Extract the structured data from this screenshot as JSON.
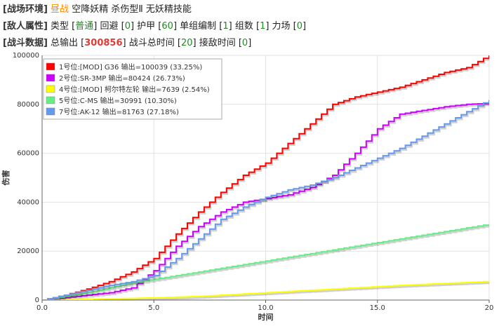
{
  "env": {
    "label": "[战场环境]",
    "time": "昼战",
    "fairy": "空降妖精",
    "type_text": "杀伤型Ⅱ",
    "skill": "无妖精技能"
  },
  "enemy": {
    "label": "[敌人属性]",
    "type_label": "类型 [",
    "type_value": "普通",
    "evasion_label": "] 回避 [",
    "evasion_value": "0",
    "armor_label": "] 护甲 [",
    "armor_value": "60",
    "group_label": "] 单组编制 [",
    "group_value": "1",
    "count_label": "] 组数 [",
    "count_value": "1",
    "force_label": "] 力场 [",
    "force_value": "0",
    "end": "]"
  },
  "battle": {
    "label": "[战斗数据]",
    "total_label": "总输出 [",
    "total_value": "300856",
    "time_label": "] 战斗总时间 [",
    "time_value": "20",
    "contact_label": "] 接敌时间 [",
    "contact_value": "0",
    "end": "]"
  },
  "chart_data": {
    "type": "line",
    "xlabel": "时间",
    "ylabel": "伤害",
    "xlim": [
      0,
      20
    ],
    "ylim": [
      0,
      100000
    ],
    "x_ticks": [
      "0.0",
      "5.0",
      "10.0",
      "15.0",
      "20"
    ],
    "y_ticks": [
      "0",
      "20000",
      "40000",
      "60000",
      "80000",
      "100000"
    ],
    "grid": true,
    "legend_position": "top-left",
    "series": [
      {
        "name": "1号位:[MOD] G36  输出=100039 (33.25%)",
        "color": "#ff0000",
        "x": [
          0,
          1,
          2,
          3,
          4,
          5,
          6,
          7,
          8,
          9,
          10,
          11,
          12,
          13,
          14,
          15,
          16,
          17,
          18,
          19,
          20
        ],
        "y": [
          0,
          2000,
          4500,
          7500,
          11500,
          17000,
          27000,
          36000,
          44000,
          51000,
          56000,
          64000,
          72000,
          80000,
          83000,
          85000,
          87000,
          90000,
          93000,
          95000,
          100039
        ]
      },
      {
        "name": "2号位:SR-3MP  输出=80424 (26.73%)",
        "color": "#cc00ff",
        "x": [
          0,
          1,
          2,
          3,
          4,
          5,
          6,
          7,
          8,
          9,
          10,
          11,
          12,
          13,
          14,
          15,
          16,
          17,
          18,
          19,
          20
        ],
        "y": [
          0,
          1000,
          2000,
          3000,
          5000,
          12000,
          22000,
          30000,
          36000,
          40000,
          41500,
          43000,
          46000,
          51000,
          60000,
          70000,
          76000,
          77500,
          79000,
          80000,
          80424
        ]
      },
      {
        "name": "4号位:[MOD] 柯尔特左轮  输出=7639 (2.54%)",
        "color": "#ffff00",
        "x": [
          0,
          1,
          2,
          3,
          4,
          5,
          6,
          7,
          8,
          9,
          10,
          11,
          12,
          13,
          14,
          15,
          16,
          17,
          18,
          19,
          20
        ],
        "y": [
          0,
          150,
          300,
          500,
          700,
          900,
          1200,
          1500,
          2000,
          2500,
          3000,
          3500,
          4000,
          4500,
          5000,
          5500,
          6000,
          6400,
          6800,
          7200,
          7639
        ]
      },
      {
        "name": "5号位:C-MS  输出=30991 (10.30%)",
        "color": "#66ee88",
        "x": [
          0,
          1,
          2,
          3,
          4,
          5,
          6,
          7,
          8,
          9,
          10,
          11,
          12,
          13,
          14,
          15,
          16,
          17,
          18,
          19,
          20
        ],
        "y": [
          0,
          1500,
          3000,
          5000,
          7000,
          8500,
          10000,
          11500,
          13000,
          14500,
          16000,
          17500,
          19000,
          20500,
          22000,
          23500,
          25000,
          26500,
          28000,
          29500,
          30991
        ]
      },
      {
        "name": "7号位:AK-12  输出=81763 (27.18%)",
        "color": "#6699ee",
        "x": [
          0,
          1,
          2,
          3,
          4,
          5,
          6,
          7,
          8,
          9,
          10,
          11,
          12,
          13,
          14,
          15,
          16,
          17,
          18,
          19,
          20
        ],
        "y": [
          0,
          2000,
          4000,
          6000,
          7500,
          10000,
          17000,
          25000,
          33000,
          38000,
          42000,
          45000,
          47000,
          50000,
          54000,
          58000,
          62000,
          67000,
          72000,
          77000,
          81763
        ]
      }
    ]
  }
}
